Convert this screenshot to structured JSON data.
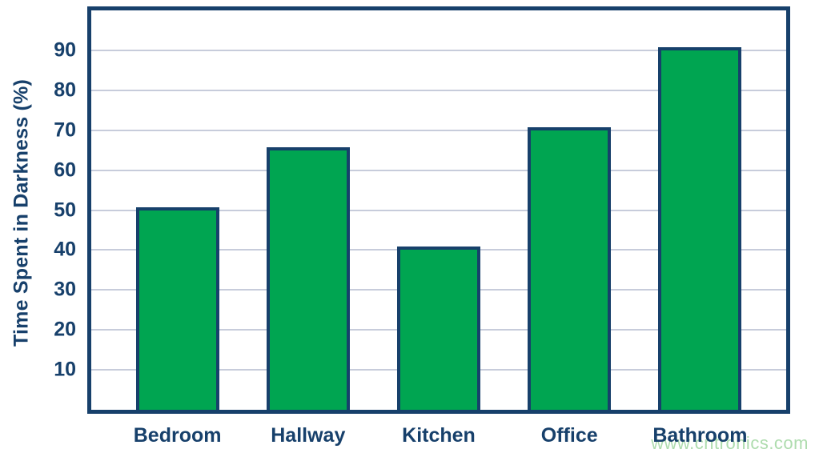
{
  "watermark": {
    "text": "www.cntronics.com",
    "color": "#AEDCAE"
  },
  "chart_data": {
    "type": "bar",
    "categories": [
      "Bedroom",
      "Hallway",
      "Kitchen",
      "Office",
      "Bathroom"
    ],
    "values": [
      50,
      65,
      40,
      70,
      90
    ],
    "title": "",
    "xlabel": "",
    "ylabel": "Time Spent in Darkness (%)",
    "ylim": [
      0,
      100
    ],
    "yticks": [
      10,
      20,
      30,
      40,
      50,
      60,
      70,
      80,
      90
    ],
    "grid": true,
    "legend": false,
    "colors": {
      "bar_fill": "#00A551",
      "bar_border": "#17406B",
      "axis_border": "#17406B",
      "gridline": "#C7CCDB",
      "text": "#17406B",
      "watermark": "#AEDCAE",
      "background": "#FFFFFF"
    }
  }
}
